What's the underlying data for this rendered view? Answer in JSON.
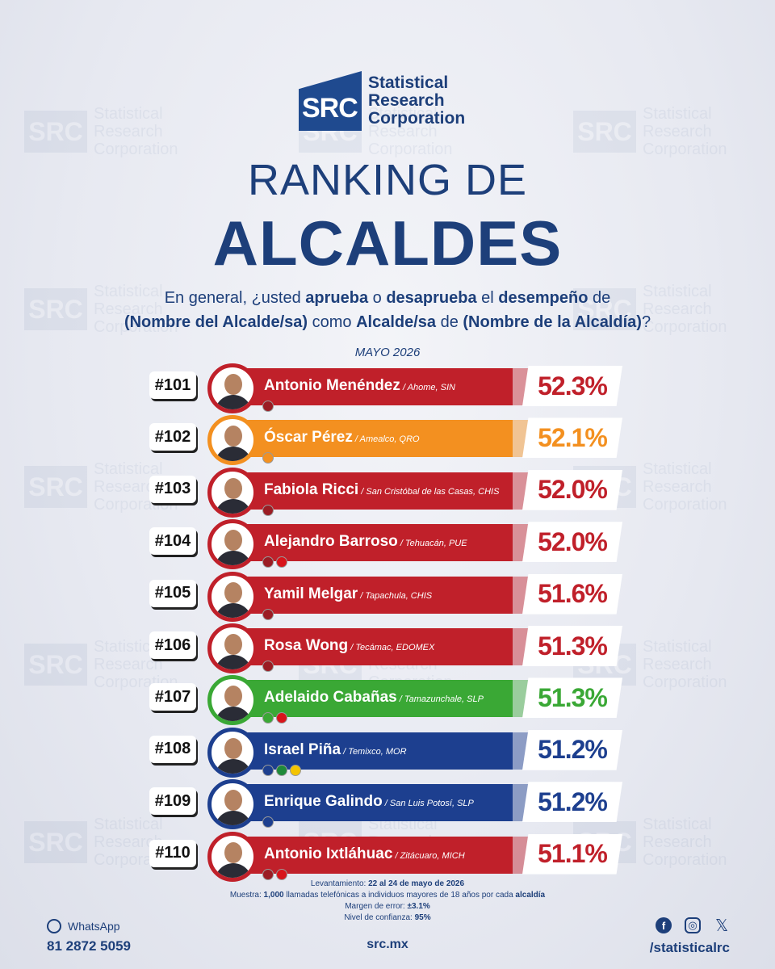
{
  "brand": {
    "logo_abbr": "SRC",
    "logo_line1": "Statistical",
    "logo_line2": "Research",
    "logo_line3": "Corporation"
  },
  "title": {
    "line1": "RANKING DE",
    "line2": "ALCALDES"
  },
  "question": {
    "p1": "En general, ¿usted ",
    "b1": "aprueba",
    "p2": " o ",
    "b2": "desaprueba",
    "p3": " el ",
    "b3": "desempeño",
    "p4": " de ",
    "b4": "(Nombre del Alcalde/sa)",
    "p5": " como ",
    "b5": "Alcalde/sa",
    "p6": " de ",
    "b6": "(Nombre de la Alcaldía)",
    "p7": "?"
  },
  "month": "MAYO 2026",
  "colors": {
    "red": "#c0202a",
    "orange": "#f39020",
    "green": "#3aa835",
    "blue": "#1d3f8f"
  },
  "chart_data": {
    "type": "bar",
    "categories": [
      "#101",
      "#102",
      "#103",
      "#104",
      "#105",
      "#106",
      "#107",
      "#108",
      "#109",
      "#110"
    ],
    "rows": [
      {
        "rank": "#101",
        "name": "Antonio Menéndez",
        "place": " / Ahome, SIN",
        "value": 52.3,
        "label": "52.3%",
        "color": "red",
        "parties": [
          "morena"
        ]
      },
      {
        "rank": "#102",
        "name": "Óscar Pérez",
        "place": " / Amealco, QRO",
        "value": 52.1,
        "label": "52.1%",
        "color": "orange",
        "parties": [
          "mc"
        ]
      },
      {
        "rank": "#103",
        "name": "Fabiola Ricci",
        "place": " / San Cristóbal de las Casas, CHIS",
        "value": 52.0,
        "label": "52.0%",
        "color": "red",
        "parties": [
          "morena"
        ]
      },
      {
        "rank": "#104",
        "name": "Alejandro Barroso",
        "place": " / Tehuacán, PUE",
        "value": 52.0,
        "label": "52.0%",
        "color": "red",
        "parties": [
          "morena",
          "pt"
        ]
      },
      {
        "rank": "#105",
        "name": "Yamil Melgar",
        "place": " / Tapachula, CHIS",
        "value": 51.6,
        "label": "51.6%",
        "color": "red",
        "parties": [
          "morena"
        ]
      },
      {
        "rank": "#106",
        "name": "Rosa Wong",
        "place": " / Tecámac, EDOMEX",
        "value": 51.3,
        "label": "51.3%",
        "color": "red",
        "parties": [
          "morena"
        ]
      },
      {
        "rank": "#107",
        "name": "Adelaido Cabañas",
        "place": " / Tamazunchale, SLP",
        "value": 51.3,
        "label": "51.3%",
        "color": "green",
        "parties": [
          "pvem",
          "pt"
        ]
      },
      {
        "rank": "#108",
        "name": "Israel Piña",
        "place": " / Temixco, MOR",
        "value": 51.2,
        "label": "51.2%",
        "color": "blue",
        "parties": [
          "pan",
          "pri",
          "prd"
        ]
      },
      {
        "rank": "#109",
        "name": "Enrique Galindo",
        "place": " / San Luis Potosí, SLP",
        "value": 51.2,
        "label": "51.2%",
        "color": "blue",
        "parties": [
          "pan"
        ]
      },
      {
        "rank": "#110",
        "name": "Antonio Ixtláhuac",
        "place": " / Zitácuaro, MICH",
        "value": 51.1,
        "label": "51.1%",
        "color": "red",
        "parties": [
          "morena",
          "pt"
        ]
      }
    ]
  },
  "footer": {
    "l1_label": "Levantamiento: ",
    "l1_value": "22 al 24 de mayo de 2026",
    "l2_label": "Muestra: ",
    "l2_value": "1,000",
    "l2_mid": " llamadas telefónicas a individuos mayores de 18 años por cada ",
    "l2_end": "alcaldía",
    "l3_label": "Margen de error: ",
    "l3_value": "±3.1%",
    "l4_label": "Nivel de confianza: ",
    "l4_value": "95%",
    "whatsapp_label": "WhatsApp",
    "whatsapp_number": "81 2872 5059",
    "site": "src.mx",
    "handle": "/statisticalrc"
  }
}
